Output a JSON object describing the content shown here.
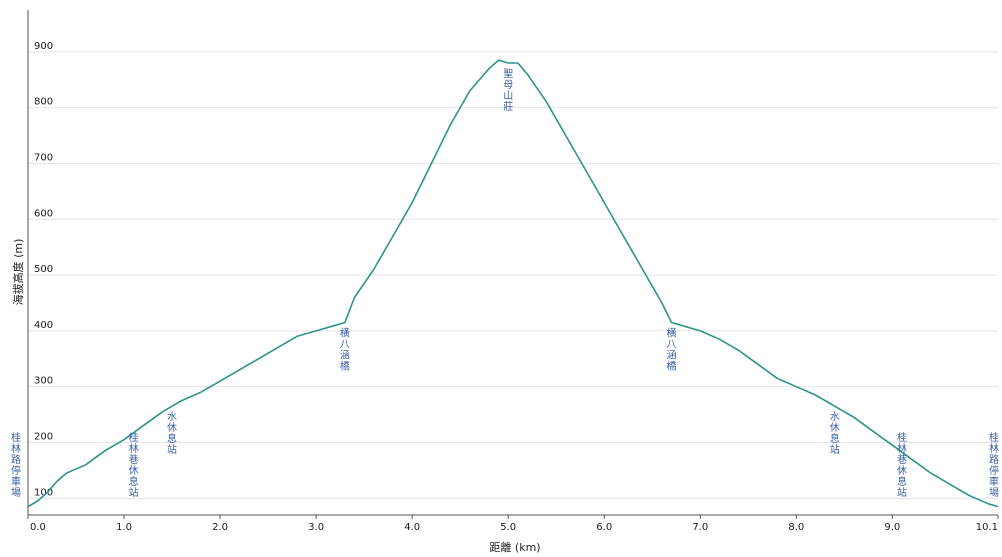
{
  "chart_data": {
    "type": "line",
    "xlabel": "距離 (km)",
    "ylabel": "海拔高度 (m)",
    "xlim": [
      0,
      10.1
    ],
    "ylim": [
      70,
      975
    ],
    "x_ticks": [
      "0.0",
      "1.0",
      "2.0",
      "3.0",
      "4.0",
      "5.0",
      "6.0",
      "7.0",
      "8.0",
      "9.0",
      "10.1"
    ],
    "y_ticks": [
      "100",
      "200",
      "300",
      "400",
      "500",
      "600",
      "700",
      "800",
      "900"
    ],
    "grid": true,
    "line_color": "#2e9488",
    "series": [
      {
        "x": [
          0.0,
          0.1,
          0.2,
          0.3,
          0.4,
          0.6,
          0.8,
          1.0,
          1.2,
          1.4,
          1.6,
          1.8,
          2.0,
          2.2,
          2.4,
          2.6,
          2.8,
          3.0,
          3.2,
          3.3,
          3.4,
          3.6,
          3.8,
          4.0,
          4.2,
          4.4,
          4.6,
          4.8,
          4.9,
          5.0,
          5.1,
          5.2,
          5.4,
          5.6,
          5.8,
          6.0,
          6.2,
          6.4,
          6.6,
          6.7,
          6.8,
          7.0,
          7.2,
          7.4,
          7.6,
          7.8,
          8.0,
          8.2,
          8.4,
          8.6,
          8.8,
          9.0,
          9.2,
          9.4,
          9.6,
          9.8,
          10.0,
          10.1
        ],
        "values": [
          85,
          95,
          110,
          130,
          145,
          160,
          185,
          205,
          230,
          255,
          275,
          290,
          310,
          330,
          350,
          370,
          390,
          400,
          410,
          415,
          460,
          510,
          570,
          630,
          700,
          770,
          830,
          870,
          885,
          880,
          880,
          860,
          810,
          750,
          690,
          630,
          570,
          510,
          450,
          415,
          410,
          400,
          385,
          365,
          340,
          315,
          300,
          285,
          265,
          245,
          220,
          195,
          170,
          145,
          125,
          105,
          90,
          85
        ]
      }
    ],
    "annotations": [
      {
        "text": "桂林路停車場",
        "x": 0.0
      },
      {
        "text": "桂林巷休息站",
        "x": 1.1
      },
      {
        "text": "水休息站",
        "x": 1.5
      },
      {
        "text": "橫八涵橋",
        "x": 3.3
      },
      {
        "text": "聖母山莊",
        "x": 5.0
      },
      {
        "text": "橫八涵橋",
        "x": 6.7
      },
      {
        "text": "水休息站",
        "x": 8.4
      },
      {
        "text": "桂林巷休息站",
        "x": 9.1
      },
      {
        "text": "桂林路停車場",
        "x": 10.1
      }
    ]
  }
}
